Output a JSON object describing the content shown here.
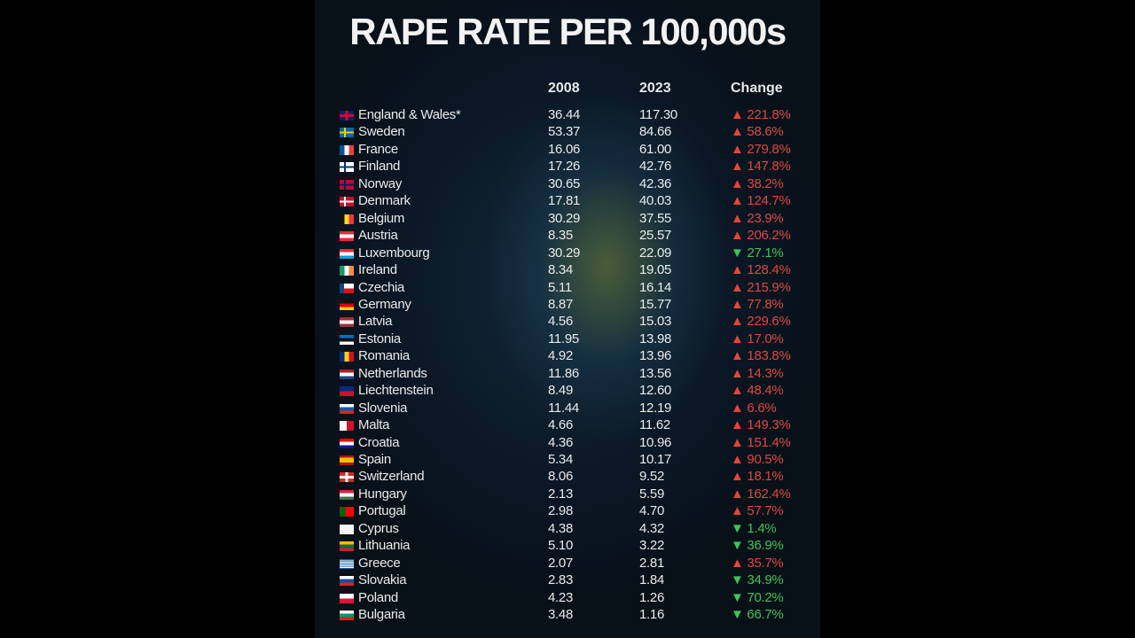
{
  "header": {
    "title": "RAPE RATE PER 100,000s"
  },
  "table": {
    "columns": [
      "2008",
      "2023",
      "Change"
    ],
    "rows": [
      [
        "England & Wales*",
        "36.44",
        "117.30",
        "▲ 221.8%"
      ],
      [
        "Sweden",
        "53.37",
        "84.66",
        "▲ 58.6%"
      ],
      [
        "France",
        "16.06",
        "61.00",
        "▲ 279.8%"
      ],
      [
        "Finland",
        "17.26",
        "42.76",
        "▲ 147.8%"
      ],
      [
        "Norway",
        "30.65",
        "42.36",
        "▲ 38.2%"
      ],
      [
        "Denmark",
        "17.81",
        "40.03",
        "▲ 124.7%"
      ],
      [
        "Belgium",
        "30.29",
        "37.55",
        "▲ 23.9%"
      ],
      [
        "Austria",
        "8.35",
        "25.57",
        "▲ 206.2%"
      ],
      [
        "Luxembourg",
        "30.29",
        "22.09",
        "▼ 27.1%"
      ],
      [
        "Ireland",
        "8.34",
        "19.05",
        "▲ 128.4%"
      ],
      [
        "Czechia",
        "5.11",
        "16.14",
        "▲ 215.9%"
      ],
      [
        "Germany",
        "8.87",
        "15.77",
        "▲ 77.8%"
      ],
      [
        "Latvia",
        "4.56",
        "15.03",
        "▲ 229.6%"
      ],
      [
        "Estonia",
        "11.95",
        "13.98",
        "▲ 17.0%"
      ],
      [
        "Romania",
        "4.92",
        "13.96",
        "▲ 183.8%"
      ],
      [
        "Netherlands",
        "11.86",
        "13.56",
        "▲ 14.3%"
      ],
      [
        "Liechtenstein",
        "8.49",
        "12.60",
        "▲ 48.4%"
      ],
      [
        "Slovenia",
        "11.44",
        "12.19",
        "▲ 6.6%"
      ],
      [
        "Malta",
        "4.66",
        "11.62",
        "▲ 149.3%"
      ],
      [
        "Croatia",
        "4.36",
        "10.96",
        "▲ 151.4%"
      ],
      [
        "Spain",
        "5.34",
        "10.17",
        "▲ 90.5%"
      ],
      [
        "Switzerland",
        "8.06",
        "9.52",
        "▲ 18.1%"
      ],
      [
        "Hungary",
        "2.13",
        "5.59",
        "▲ 162.4%"
      ],
      [
        "Portugal",
        "2.98",
        "4.70",
        "▲ 57.7%"
      ],
      [
        "Cyprus",
        "4.38",
        "4.32",
        "▼ 1.4%"
      ],
      [
        "Lithuania",
        "5.10",
        "3.22",
        "▼ 36.9%"
      ],
      [
        "Greece",
        "2.07",
        "2.81",
        "▲ 35.7%"
      ],
      [
        "Slovakia",
        "2.83",
        "1.84",
        "▼ 34.9%"
      ],
      [
        "Poland",
        "4.23",
        "1.26",
        "▼ 70.2%"
      ],
      [
        "Bulgaria",
        "3.48",
        "1.16",
        "▼ 66.7%"
      ]
    ]
  }
}
